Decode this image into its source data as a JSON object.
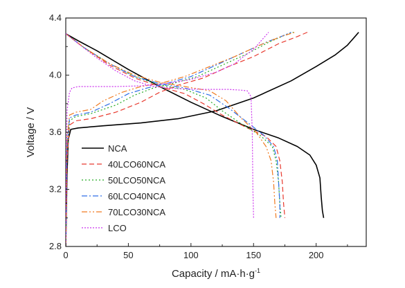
{
  "chart_data": {
    "type": "line",
    "xlabel": "Capacity / mA·h·g",
    "xlabel_sup": "-1",
    "ylabel": "Voltage / V",
    "xlim": [
      0,
      240
    ],
    "ylim": [
      2.8,
      4.4
    ],
    "x_ticks": [
      0,
      50,
      100,
      150,
      200
    ],
    "x_tick_labels": [
      "0",
      "50",
      "100",
      "150",
      "200"
    ],
    "y_ticks": [
      2.8,
      3.2,
      3.6,
      4.0,
      4.4
    ],
    "y_tick_labels": [
      "2.8",
      "3.2",
      "3.6",
      "4.0",
      "4.4"
    ],
    "legend_position": "lower-left",
    "series": [
      {
        "name": "NCA",
        "color": "#000000",
        "dash": "solid",
        "charge": [
          [
            0,
            2.8
          ],
          [
            1,
            3.3
          ],
          [
            2,
            3.55
          ],
          [
            4,
            3.62
          ],
          [
            10,
            3.63
          ],
          [
            30,
            3.645
          ],
          [
            60,
            3.665
          ],
          [
            90,
            3.695
          ],
          [
            120,
            3.75
          ],
          [
            150,
            3.84
          ],
          [
            180,
            3.96
          ],
          [
            200,
            4.06
          ],
          [
            215,
            4.14
          ],
          [
            225,
            4.21
          ],
          [
            232,
            4.28
          ],
          [
            234,
            4.3
          ]
        ],
        "discharge": [
          [
            0,
            4.29
          ],
          [
            10,
            4.24
          ],
          [
            25,
            4.17
          ],
          [
            50,
            4.04
          ],
          [
            75,
            3.92
          ],
          [
            100,
            3.81
          ],
          [
            125,
            3.71
          ],
          [
            150,
            3.62
          ],
          [
            170,
            3.56
          ],
          [
            185,
            3.5
          ],
          [
            195,
            3.44
          ],
          [
            200,
            3.37
          ],
          [
            203,
            3.28
          ],
          [
            204,
            3.15
          ],
          [
            205,
            3.05
          ],
          [
            206,
            3.0
          ]
        ]
      },
      {
        "name": "40LCO60NCA",
        "color": "#e8392e",
        "dash": "dashed",
        "charge": [
          [
            0,
            2.8
          ],
          [
            1,
            3.4
          ],
          [
            3,
            3.65
          ],
          [
            8,
            3.68
          ],
          [
            20,
            3.695
          ],
          [
            40,
            3.74
          ],
          [
            60,
            3.81
          ],
          [
            75,
            3.88
          ],
          [
            90,
            3.93
          ],
          [
            110,
            3.98
          ],
          [
            130,
            4.06
          ],
          [
            150,
            4.13
          ],
          [
            170,
            4.22
          ],
          [
            185,
            4.27
          ],
          [
            193,
            4.3
          ]
        ],
        "discharge": [
          [
            0,
            4.29
          ],
          [
            15,
            4.19
          ],
          [
            35,
            4.07
          ],
          [
            55,
            3.98
          ],
          [
            75,
            3.92
          ],
          [
            95,
            3.87
          ],
          [
            110,
            3.8
          ],
          [
            125,
            3.72
          ],
          [
            145,
            3.63
          ],
          [
            160,
            3.57
          ],
          [
            168,
            3.5
          ],
          [
            171,
            3.4
          ],
          [
            173,
            3.25
          ],
          [
            174,
            3.1
          ],
          [
            175,
            3.0
          ]
        ]
      },
      {
        "name": "50LCO50NCA",
        "color": "#22aa22",
        "dash": "dotted",
        "charge": [
          [
            0,
            2.8
          ],
          [
            1,
            3.45
          ],
          [
            3,
            3.68
          ],
          [
            8,
            3.71
          ],
          [
            20,
            3.73
          ],
          [
            40,
            3.79
          ],
          [
            55,
            3.86
          ],
          [
            70,
            3.91
          ],
          [
            85,
            3.94
          ],
          [
            105,
            3.99
          ],
          [
            125,
            4.07
          ],
          [
            145,
            4.15
          ],
          [
            162,
            4.23
          ],
          [
            175,
            4.28
          ],
          [
            182,
            4.3
          ]
        ],
        "discharge": [
          [
            0,
            4.29
          ],
          [
            15,
            4.19
          ],
          [
            35,
            4.08
          ],
          [
            55,
            3.99
          ],
          [
            75,
            3.93
          ],
          [
            95,
            3.9
          ],
          [
            112,
            3.84
          ],
          [
            125,
            3.75
          ],
          [
            140,
            3.66
          ],
          [
            155,
            3.58
          ],
          [
            165,
            3.5
          ],
          [
            168,
            3.4
          ],
          [
            170,
            3.25
          ],
          [
            171,
            3.1
          ],
          [
            172,
            3.0
          ]
        ]
      },
      {
        "name": "60LCO40NCA",
        "color": "#2e6ee6",
        "dash": "dashdot",
        "charge": [
          [
            0,
            2.8
          ],
          [
            1,
            3.5
          ],
          [
            3,
            3.7
          ],
          [
            8,
            3.72
          ],
          [
            20,
            3.74
          ],
          [
            35,
            3.8
          ],
          [
            50,
            3.87
          ],
          [
            65,
            3.91
          ],
          [
            80,
            3.94
          ],
          [
            100,
            3.99
          ],
          [
            120,
            4.07
          ],
          [
            140,
            4.15
          ],
          [
            160,
            4.23
          ],
          [
            172,
            4.27
          ],
          [
            180,
            4.3
          ]
        ],
        "discharge": [
          [
            0,
            4.29
          ],
          [
            15,
            4.19
          ],
          [
            35,
            4.08
          ],
          [
            55,
            3.99
          ],
          [
            75,
            3.94
          ],
          [
            95,
            3.91
          ],
          [
            115,
            3.86
          ],
          [
            130,
            3.77
          ],
          [
            145,
            3.67
          ],
          [
            158,
            3.58
          ],
          [
            166,
            3.5
          ],
          [
            169,
            3.4
          ],
          [
            170,
            3.25
          ],
          [
            171,
            3.1
          ],
          [
            171,
            3.0
          ]
        ]
      },
      {
        "name": "70LCO30NCA",
        "color": "#f07a20",
        "dash": "dashdotdot",
        "charge": [
          [
            0,
            2.8
          ],
          [
            1,
            3.55
          ],
          [
            3,
            3.72
          ],
          [
            8,
            3.74
          ],
          [
            20,
            3.76
          ],
          [
            30,
            3.82
          ],
          [
            45,
            3.88
          ],
          [
            60,
            3.92
          ],
          [
            75,
            3.94
          ],
          [
            95,
            3.99
          ],
          [
            115,
            4.06
          ],
          [
            135,
            4.13
          ],
          [
            155,
            4.21
          ],
          [
            172,
            4.27
          ],
          [
            183,
            4.3
          ]
        ],
        "discharge": [
          [
            0,
            4.29
          ],
          [
            15,
            4.19
          ],
          [
            35,
            4.08
          ],
          [
            55,
            4.0
          ],
          [
            75,
            3.95
          ],
          [
            95,
            3.92
          ],
          [
            115,
            3.89
          ],
          [
            128,
            3.82
          ],
          [
            140,
            3.7
          ],
          [
            152,
            3.6
          ],
          [
            160,
            3.5
          ],
          [
            164,
            3.4
          ],
          [
            166,
            3.25
          ],
          [
            167,
            3.1
          ],
          [
            168,
            3.0
          ]
        ]
      },
      {
        "name": "LCO",
        "color": "#cc33ee",
        "dash": "shortdot",
        "charge": [
          [
            0,
            2.8
          ],
          [
            1,
            3.75
          ],
          [
            3,
            3.88
          ],
          [
            5,
            3.91
          ],
          [
            10,
            3.92
          ],
          [
            20,
            3.92
          ],
          [
            40,
            3.92
          ],
          [
            60,
            3.925
          ],
          [
            80,
            3.94
          ],
          [
            100,
            3.97
          ],
          [
            120,
            4.02
          ],
          [
            135,
            4.08
          ],
          [
            142,
            4.13
          ],
          [
            150,
            4.18
          ],
          [
            158,
            4.26
          ],
          [
            162,
            4.3
          ]
        ],
        "discharge": [
          [
            0,
            4.29
          ],
          [
            10,
            4.22
          ],
          [
            25,
            4.12
          ],
          [
            40,
            4.03
          ],
          [
            55,
            3.96
          ],
          [
            70,
            3.92
          ],
          [
            90,
            3.905
          ],
          [
            110,
            3.9
          ],
          [
            130,
            3.9
          ],
          [
            140,
            3.895
          ],
          [
            145,
            3.89
          ],
          [
            148,
            3.85
          ],
          [
            149,
            3.6
          ],
          [
            149.5,
            3.2
          ],
          [
            150,
            3.0
          ]
        ]
      }
    ]
  }
}
